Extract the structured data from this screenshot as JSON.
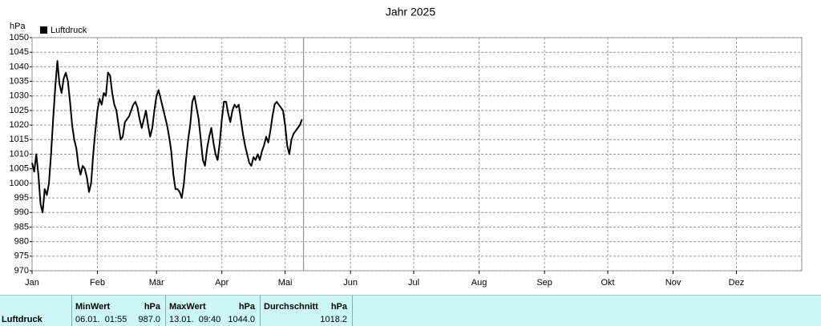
{
  "chart_data": {
    "type": "line",
    "title": "Jahr 2025",
    "y_label": "hPa",
    "x": [
      0,
      1,
      2,
      3,
      4,
      5,
      6,
      7,
      8,
      9,
      10,
      11,
      12,
      13,
      14,
      15,
      16,
      17,
      18,
      19,
      20,
      21,
      22,
      23,
      24,
      25,
      26,
      27,
      28,
      29,
      30,
      31,
      32,
      33,
      34,
      35,
      36,
      37,
      38,
      39,
      40,
      41,
      42,
      43,
      44,
      45,
      46,
      47,
      48,
      49,
      50,
      51,
      52,
      53,
      54,
      55,
      56,
      57,
      58,
      59,
      60,
      61,
      62,
      63,
      64,
      65,
      66,
      67,
      68,
      69,
      70,
      71,
      72,
      73,
      74,
      75,
      76,
      77,
      78,
      79,
      80,
      81,
      82,
      83,
      84,
      85,
      86,
      87,
      88,
      89,
      90,
      91,
      92,
      93,
      94,
      95,
      96,
      97,
      98,
      99,
      100,
      101,
      102,
      103,
      104,
      105,
      106,
      107,
      108,
      109,
      110,
      111,
      112,
      113,
      114,
      115,
      116,
      117,
      118,
      119,
      120,
      121,
      122,
      123,
      124,
      125,
      126,
      127,
      128
    ],
    "series": [
      {
        "name": "Luftdruck",
        "color": "#000000",
        "values": [
          1007,
          1004,
          1010,
          1003,
          993,
          990,
          998,
          996,
          1000,
          1010,
          1022,
          1033,
          1042,
          1034,
          1031,
          1036,
          1038,
          1035,
          1028,
          1020,
          1015,
          1012,
          1006,
          1003,
          1006,
          1005,
          1002,
          997,
          1000,
          1010,
          1018,
          1025,
          1029,
          1027,
          1031,
          1030,
          1038,
          1037,
          1031,
          1027,
          1025,
          1020,
          1015,
          1016,
          1021,
          1022,
          1023,
          1025,
          1027,
          1028,
          1026,
          1022,
          1019,
          1022,
          1025,
          1020,
          1016,
          1019,
          1025,
          1030,
          1032,
          1029,
          1026,
          1023,
          1020,
          1016,
          1011,
          1003,
          998,
          998,
          997,
          995,
          1000,
          1008,
          1015,
          1020,
          1028,
          1030,
          1026,
          1022,
          1015,
          1008,
          1006,
          1012,
          1016,
          1019,
          1014,
          1010,
          1008,
          1014,
          1022,
          1028,
          1028,
          1024,
          1021,
          1025,
          1027,
          1026,
          1027,
          1022,
          1017,
          1013,
          1010,
          1007,
          1006,
          1009,
          1008,
          1010,
          1008,
          1011,
          1013,
          1016,
          1014,
          1018,
          1023,
          1027,
          1028,
          1027,
          1026,
          1025,
          1020,
          1013,
          1010,
          1015,
          1017,
          1018,
          1019,
          1020,
          1022
        ]
      }
    ],
    "xlim": [
      0,
      365
    ],
    "xticks": [
      {
        "value": 0,
        "label": "Jan"
      },
      {
        "value": 31,
        "label": "Feb"
      },
      {
        "value": 59,
        "label": "Mär"
      },
      {
        "value": 90,
        "label": "Apr"
      },
      {
        "value": 120,
        "label": "Mai"
      },
      {
        "value": 151,
        "label": "Jun"
      },
      {
        "value": 181,
        "label": "Jul"
      },
      {
        "value": 212,
        "label": "Aug"
      },
      {
        "value": 243,
        "label": "Sep"
      },
      {
        "value": 273,
        "label": "Okt"
      },
      {
        "value": 304,
        "label": "Nov"
      },
      {
        "value": 334,
        "label": "Dez"
      }
    ],
    "ylim": [
      970,
      1050
    ],
    "yticks": [
      970,
      975,
      980,
      985,
      990,
      995,
      1000,
      1005,
      1010,
      1015,
      1020,
      1025,
      1030,
      1035,
      1040,
      1045,
      1050
    ],
    "grid": true
  },
  "stats": {
    "label": "Luftdruck",
    "columns": [
      {
        "header": "MinWert",
        "unit": "hPa",
        "date": "06.01.  01:55",
        "value": "987.0"
      },
      {
        "header": "MaxWert",
        "unit": "hPa",
        "date": "13.01.  09:40",
        "value": "1044.0"
      },
      {
        "header": "Durchschnitt",
        "unit": "hPa",
        "value": "1018.2"
      }
    ]
  }
}
